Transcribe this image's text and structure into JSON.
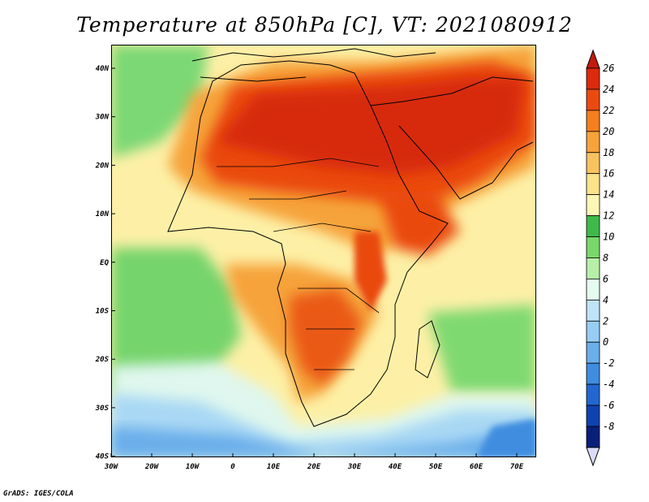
{
  "title": "Temperature at 850hPa [C], VT: 2021080912",
  "credit": "GrADS: IGES/COLA",
  "map": {
    "lat_ticks": [
      "40N",
      "30N",
      "20N",
      "10N",
      "EQ",
      "10S",
      "20S",
      "30S",
      "40S"
    ],
    "lon_ticks": [
      "30W",
      "20W",
      "10W",
      "0",
      "10E",
      "20E",
      "30E",
      "40E",
      "50E",
      "60E",
      "70E"
    ]
  },
  "colorbar": {
    "labels": [
      "26",
      "24",
      "22",
      "20",
      "18",
      "16",
      "14",
      "12",
      "10",
      "8",
      "6",
      "4",
      "2",
      "0",
      "-2",
      "-4",
      "-6",
      "-8"
    ],
    "colors": [
      "#dc2a0c",
      "#ea4a10",
      "#f57f1f",
      "#f6a33a",
      "#f8c35f",
      "#fbe38b",
      "#fdf7b6",
      "#3fb94a",
      "#78d86a",
      "#b7efa8",
      "#e6fbf0",
      "#bfe3f7",
      "#97cdf3",
      "#6aaeea",
      "#3f8de0",
      "#2167cf",
      "#0f42b0",
      "#0a1f7a"
    ],
    "top_arrow_color": "#c21b0b",
    "bottom_arrow_color": "#dcdcf8"
  }
}
